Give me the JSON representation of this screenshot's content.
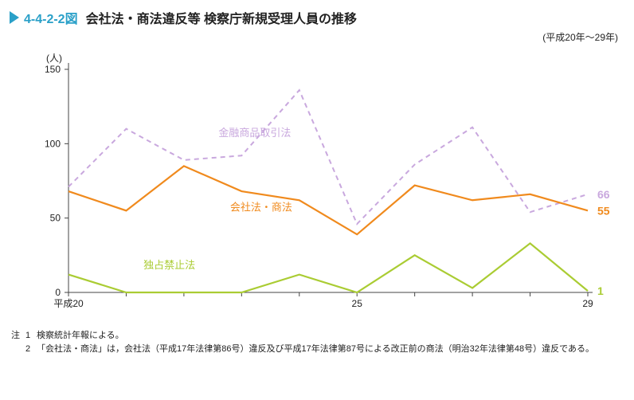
{
  "figure_number": "4-4-2-2図",
  "title": "会社法・商法違反等 検察庁新規受理人員の推移",
  "range_label": "(平成20年〜29年)",
  "y_axis_label": "(人)",
  "accent_color": "#2aa0c8",
  "chart": {
    "type": "line",
    "x_labels_start": "平成20",
    "x_labels_mid": "25",
    "x_labels_end": "29",
    "x_indices": [
      0,
      1,
      2,
      3,
      4,
      5,
      6,
      7,
      8,
      9
    ],
    "x_tick_positions": [
      0,
      5,
      9
    ],
    "ylim": [
      0,
      150
    ],
    "y_ticks": [
      0,
      50,
      100,
      150
    ],
    "axis_color": "#333333",
    "background_color": "#ffffff",
    "series": [
      {
        "name": "金融商品取引法",
        "label": "金融商品取引法",
        "values": [
          71,
          110,
          89,
          92,
          136,
          46,
          86,
          111,
          54,
          66
        ],
        "color": "#c9a8de",
        "dash": "6,5",
        "width": 2,
        "end_value": "66",
        "label_pos_idx": 2.6,
        "label_pos_y": 105
      },
      {
        "name": "会社法・商法",
        "label": "会社法・商法",
        "values": [
          68,
          55,
          85,
          68,
          62,
          39,
          72,
          62,
          66,
          55
        ],
        "color": "#f08a1d",
        "dash": "",
        "width": 2.2,
        "end_value": "55",
        "label_pos_idx": 2.8,
        "label_pos_y": 55
      },
      {
        "name": "独占禁止法",
        "label": "独占禁止法",
        "values": [
          12,
          0,
          0,
          0,
          12,
          0,
          25,
          3,
          33,
          1
        ],
        "color": "#aacc33",
        "dash": "",
        "width": 2.2,
        "end_value": "1",
        "label_pos_idx": 1.3,
        "label_pos_y": 16
      }
    ]
  },
  "notes": {
    "lead": "注",
    "items": [
      {
        "n": "1",
        "text": "検察統計年報による。"
      },
      {
        "n": "2",
        "text": "「会社法・商法」は，会社法（平成17年法律第86号）違反及び平成17年法律第87号による改正前の商法（明治32年法律第48号）違反である。"
      }
    ]
  }
}
